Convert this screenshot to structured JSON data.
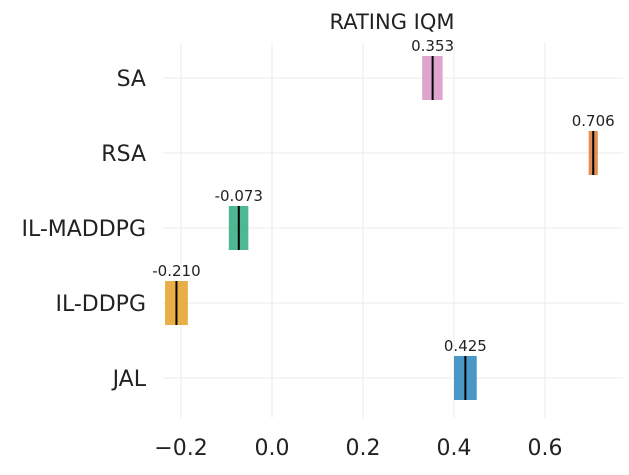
{
  "chart_data": {
    "type": "interval",
    "title": "RATING IQM",
    "xlabel": "",
    "ylabel": "",
    "xlim": [
      -0.25,
      0.75
    ],
    "x_ticks": [
      -0.2,
      0.0,
      0.2,
      0.4,
      0.6
    ],
    "x_tick_labels": [
      "−0.2",
      "0.0",
      "0.2",
      "0.4",
      "0.6"
    ],
    "grid": true,
    "legend": "none",
    "categories": [
      "SA",
      "RSA",
      "IL-MADDPG",
      "IL-DDPG",
      "JAL"
    ],
    "series": [
      {
        "category": "SA",
        "value": 0.353,
        "label": "0.353",
        "ci_low": 0.33,
        "ci_high": 0.375,
        "color": "#dd9fcb"
      },
      {
        "category": "RSA",
        "value": 0.706,
        "label": "0.706",
        "ci_low": 0.696,
        "ci_high": 0.716,
        "color": "#e2884a"
      },
      {
        "category": "IL-MADDPG",
        "value": -0.073,
        "label": "-0.073",
        "ci_low": -0.095,
        "ci_high": -0.052,
        "color": "#43b48b"
      },
      {
        "category": "IL-DDPG",
        "value": -0.21,
        "label": "-0.210",
        "ci_low": -0.235,
        "ci_high": -0.185,
        "color": "#e8ab3c"
      },
      {
        "category": "JAL",
        "value": 0.425,
        "label": "0.425",
        "ci_low": 0.4,
        "ci_high": 0.45,
        "color": "#3f92c3"
      }
    ],
    "median_line_color": "#000000",
    "grid_color": "#ebebeb"
  }
}
